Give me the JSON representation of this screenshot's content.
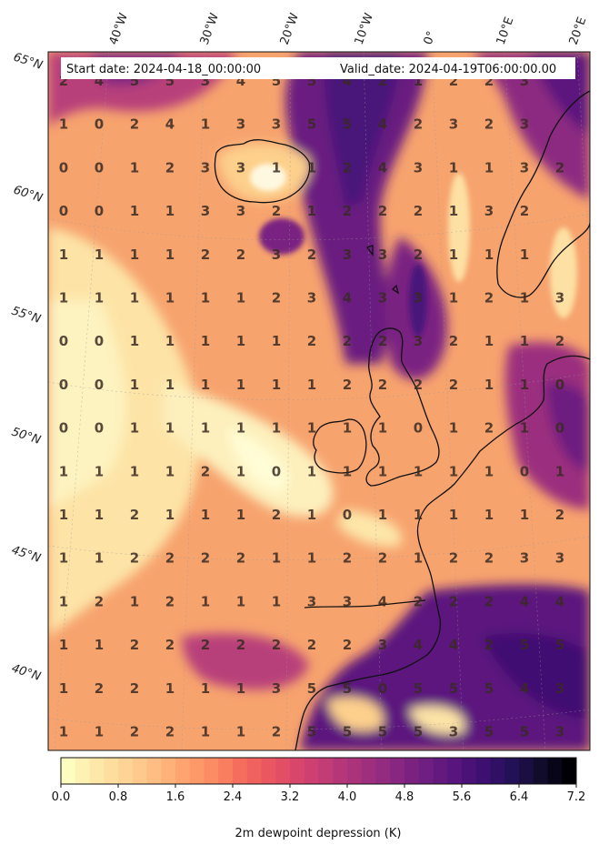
{
  "header": {
    "start_date": "Start date: 2024-04-18_00:00:00",
    "valid_date": "Valid_date: 2024-04-19T06:00:00.00"
  },
  "lon_labels": [
    "40°W",
    "30°W",
    "20°W",
    "10°W",
    "0°",
    "10°E",
    "20°E"
  ],
  "lat_labels": [
    "65°N",
    "60°N",
    "55°N",
    "50°N",
    "45°N",
    "40°N"
  ],
  "grid_values": [
    [
      "2",
      "4",
      "5",
      "5",
      "3",
      "4",
      "5",
      "5",
      "4",
      "2",
      "1",
      "2",
      "2",
      "3"
    ],
    [
      "1",
      "0",
      "2",
      "4",
      "1",
      "3",
      "3",
      "5",
      "5",
      "4",
      "2",
      "3",
      "2",
      "3"
    ],
    [
      "0",
      "0",
      "1",
      "2",
      "3",
      "3",
      "1",
      "1",
      "2",
      "4",
      "3",
      "1",
      "1",
      "3",
      "2"
    ],
    [
      "0",
      "0",
      "1",
      "1",
      "3",
      "3",
      "2",
      "1",
      "2",
      "2",
      "2",
      "1",
      "3",
      "2"
    ],
    [
      "1",
      "1",
      "1",
      "1",
      "2",
      "2",
      "3",
      "2",
      "3",
      "3",
      "2",
      "1",
      "1",
      "1"
    ],
    [
      "1",
      "1",
      "1",
      "1",
      "1",
      "1",
      "2",
      "3",
      "4",
      "3",
      "3",
      "1",
      "2",
      "1",
      "3"
    ],
    [
      "0",
      "0",
      "1",
      "1",
      "1",
      "1",
      "1",
      "2",
      "2",
      "2",
      "3",
      "2",
      "1",
      "1",
      "2"
    ],
    [
      "0",
      "0",
      "1",
      "1",
      "1",
      "1",
      "1",
      "1",
      "2",
      "2",
      "2",
      "2",
      "1",
      "1",
      "0"
    ],
    [
      "0",
      "0",
      "1",
      "1",
      "1",
      "1",
      "1",
      "1",
      "1",
      "1",
      "0",
      "1",
      "2",
      "1",
      "0"
    ],
    [
      "1",
      "1",
      "1",
      "1",
      "2",
      "1",
      "0",
      "1",
      "1",
      "1",
      "1",
      "1",
      "1",
      "0",
      "1"
    ],
    [
      "1",
      "1",
      "2",
      "1",
      "1",
      "1",
      "2",
      "1",
      "0",
      "1",
      "1",
      "1",
      "1",
      "1",
      "2"
    ],
    [
      "1",
      "1",
      "2",
      "2",
      "2",
      "2",
      "1",
      "1",
      "2",
      "2",
      "1",
      "2",
      "2",
      "3",
      "3"
    ],
    [
      "1",
      "2",
      "1",
      "2",
      "1",
      "1",
      "1",
      "3",
      "3",
      "4",
      "2",
      "2",
      "2",
      "4",
      "4"
    ],
    [
      "1",
      "1",
      "2",
      "2",
      "2",
      "2",
      "2",
      "2",
      "2",
      "3",
      "4",
      "4",
      "2",
      "5",
      "5"
    ],
    [
      "1",
      "2",
      "2",
      "1",
      "1",
      "1",
      "3",
      "5",
      "5",
      "0",
      "5",
      "5",
      "5",
      "4",
      "3"
    ],
    [
      "1",
      "1",
      "2",
      "2",
      "1",
      "1",
      "2",
      "5",
      "5",
      "5",
      "5",
      "3",
      "5",
      "5",
      "3"
    ]
  ],
  "colorbar": {
    "ticks": [
      "0.0",
      "0.8",
      "1.6",
      "2.4",
      "3.2",
      "4.0",
      "4.8",
      "5.6",
      "6.4",
      "7.2"
    ],
    "label": "2m dewpoint depression (K)",
    "min": 0.0,
    "max": 7.2,
    "colors": [
      "#fcfdbf",
      "#fee7a8",
      "#fed395",
      "#febb81",
      "#fea16e",
      "#fb8861",
      "#f4695c",
      "#e85362",
      "#d3436e",
      "#bc3978",
      "#a3307e",
      "#8c2981",
      "#721f81",
      "#5b167e",
      "#3f0f72",
      "#24115a",
      "#110b2d",
      "#000004"
    ]
  },
  "colors": {
    "coastline": "#111111",
    "ocean_base": "#f7a36e",
    "header_bg": "#ffffff"
  }
}
